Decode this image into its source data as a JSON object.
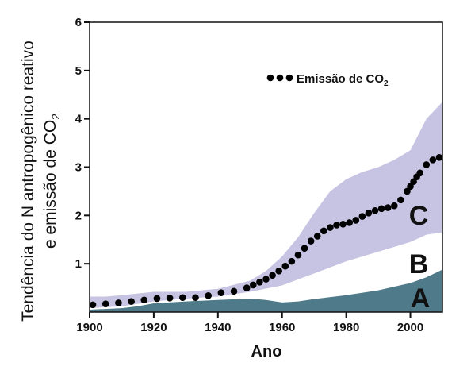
{
  "chart_data": {
    "type": "area",
    "xlabel": "Ano",
    "ylabel_line1": "Tendência do N antropogênico reativo",
    "ylabel_line2": "e emissão de CO",
    "ylabel_sub": "2",
    "xlim": [
      1900,
      2010
    ],
    "ylim": [
      0,
      6
    ],
    "xticks": [
      1900,
      1920,
      1940,
      1960,
      1980,
      2000
    ],
    "yticks": [
      1,
      2,
      3,
      4,
      5,
      6
    ],
    "legend": {
      "label": "Emissão de CO",
      "sub": "2",
      "placement": "top-right"
    },
    "area_labels": [
      "A",
      "B",
      "C"
    ],
    "colors": {
      "A": "#4f7a8a",
      "B": "#ffffff",
      "C": "#c7c3e2",
      "points": "#000000"
    },
    "series": [
      {
        "label": "A",
        "x": [
          1900,
          1910,
          1915,
          1920,
          1930,
          1940,
          1950,
          1955,
          1960,
          1965,
          1970,
          1980,
          1990,
          2000,
          2005,
          2010
        ],
        "values": [
          0.05,
          0.08,
          0.12,
          0.18,
          0.22,
          0.25,
          0.28,
          0.25,
          0.2,
          0.22,
          0.27,
          0.35,
          0.45,
          0.6,
          0.72,
          0.88
        ]
      },
      {
        "label": "B",
        "x": [
          1900,
          1910,
          1920,
          1930,
          1940,
          1950,
          1960,
          1970,
          1980,
          1990,
          2000,
          2005,
          2010
        ],
        "values": [
          0.08,
          0.12,
          0.22,
          0.28,
          0.32,
          0.42,
          0.55,
          0.8,
          1.05,
          1.25,
          1.45,
          1.6,
          1.65
        ]
      },
      {
        "label": "C",
        "x": [
          1900,
          1905,
          1910,
          1920,
          1930,
          1940,
          1950,
          1955,
          1960,
          1965,
          1970,
          1975,
          1980,
          1985,
          1990,
          1995,
          2000,
          2005,
          2010
        ],
        "values": [
          0.32,
          0.32,
          0.35,
          0.42,
          0.42,
          0.48,
          0.65,
          0.85,
          1.15,
          1.55,
          2.05,
          2.5,
          2.75,
          2.9,
          3.0,
          3.15,
          3.35,
          4.0,
          4.35
        ]
      }
    ],
    "co2_points": {
      "x": [
        1901,
        1905,
        1909,
        1913,
        1917,
        1921,
        1925,
        1929,
        1933,
        1937,
        1941,
        1945,
        1949,
        1951,
        1953,
        1955,
        1957,
        1959,
        1961,
        1963,
        1965,
        1967,
        1969,
        1971,
        1973,
        1975,
        1977,
        1979,
        1981,
        1983,
        1985,
        1987,
        1989,
        1991,
        1993,
        1995,
        1997,
        1999,
        2000,
        2001,
        2002,
        2003,
        2005,
        2007,
        2009
      ],
      "y": [
        0.15,
        0.17,
        0.19,
        0.22,
        0.25,
        0.28,
        0.29,
        0.3,
        0.3,
        0.34,
        0.4,
        0.43,
        0.5,
        0.56,
        0.62,
        0.68,
        0.76,
        0.85,
        0.95,
        1.05,
        1.18,
        1.32,
        1.47,
        1.57,
        1.68,
        1.75,
        1.8,
        1.82,
        1.85,
        1.9,
        1.98,
        2.05,
        2.1,
        2.14,
        2.16,
        2.2,
        2.32,
        2.5,
        2.6,
        2.7,
        2.8,
        2.88,
        3.05,
        3.15,
        3.2
      ]
    }
  }
}
